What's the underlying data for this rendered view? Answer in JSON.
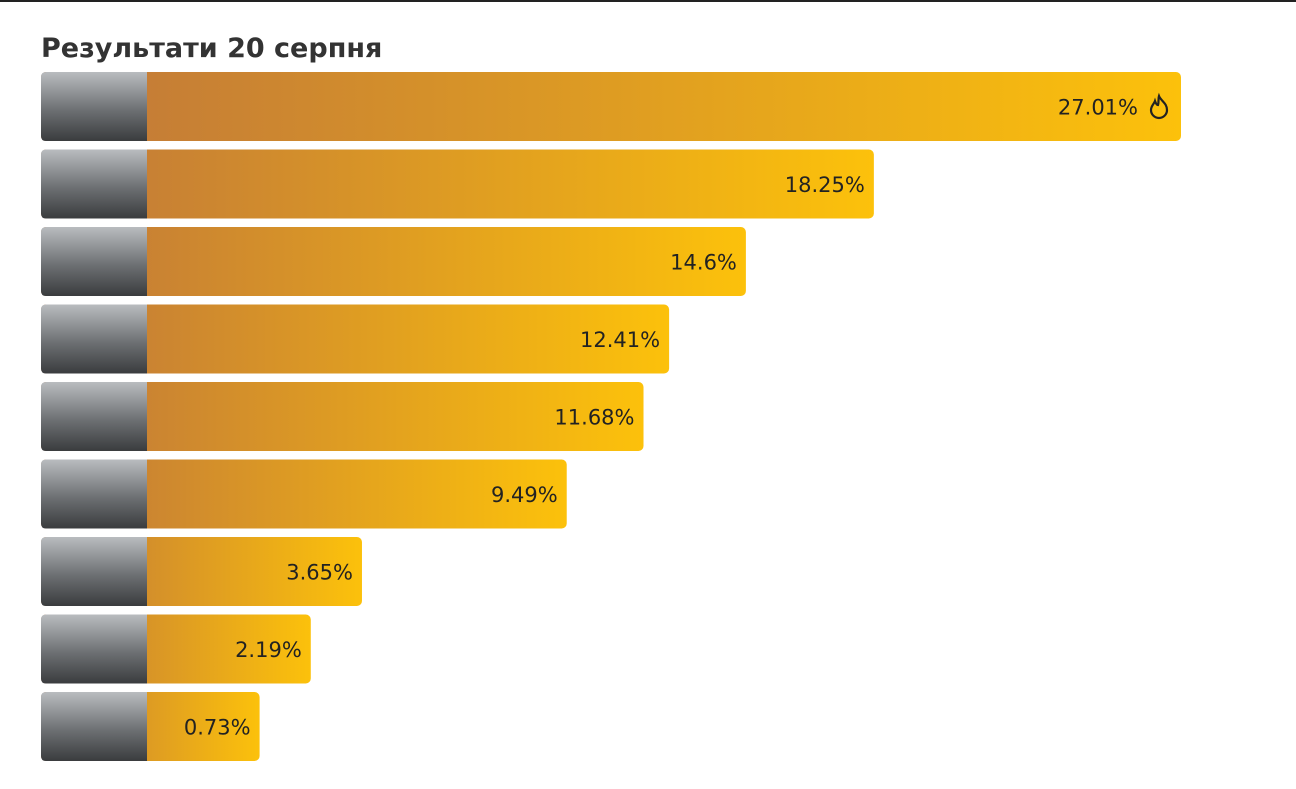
{
  "chart_data": {
    "type": "bar",
    "orientation": "horizontal",
    "title": "Результати 20 серпня",
    "values": [
      27.01,
      18.25,
      14.6,
      12.41,
      11.68,
      9.49,
      3.65,
      2.19,
      0.73
    ],
    "value_labels": [
      "27.01%",
      "18.25%",
      "14.6%",
      "12.41%",
      "11.68%",
      "9.49%",
      "3.65%",
      "2.19%",
      "0.73%"
    ],
    "color": [
      "#c0773a",
      "#fcc10b"
    ]
  }
}
